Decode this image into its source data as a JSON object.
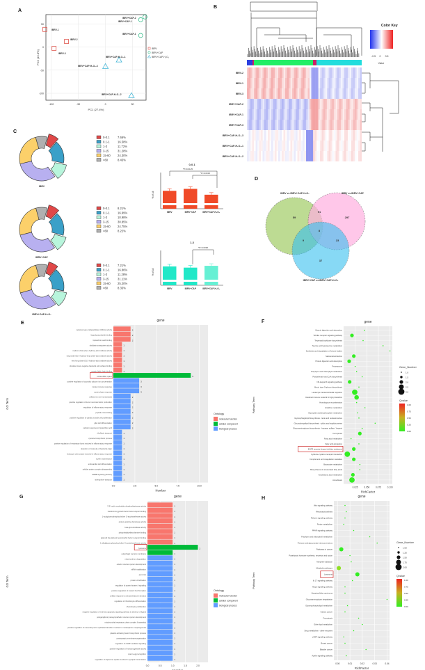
{
  "panels": {
    "A": "A",
    "B": "B",
    "C": "C",
    "D": "D",
    "E": "E",
    "F": "F",
    "G": "G",
    "H": "H"
  },
  "chart_data": [
    {
      "panel": "A",
      "type": "scatter",
      "title": "",
      "xlabel": "PC1 (27.4%)",
      "ylabel": "PC2 (15.8%)",
      "xlim": [
        -110,
        75
      ],
      "ylim": [
        -115,
        70
      ],
      "xticks": [
        -100,
        -50,
        0,
        50
      ],
      "yticks": [
        50,
        0,
        -50,
        -100
      ],
      "legend": [
        "IBRV",
        "IBRV+CAP",
        "IBRV+CAP-H2O2"
      ],
      "series": [
        {
          "name": "IBRV",
          "marker": "square",
          "color": "#e0584f",
          "points": [
            {
              "label": "IBRV-1",
              "x": -112,
              "y": 38
            },
            {
              "label": "IBRV-2",
              "x": -72,
              "y": 12
            },
            {
              "label": "IBRV-3",
              "x": -95,
              "y": -3
            }
          ]
        },
        {
          "name": "IBRV+CAP",
          "marker": "circle",
          "color": "#3fbf8f",
          "points": [
            {
              "label": "IBRV+CAP-2",
              "x": 73,
              "y": 65
            },
            {
              "label": "IBRV+CAP-1",
              "x": 65,
              "y": 59
            },
            {
              "label": "IBRV+CAP-1",
              "x": 65,
              "y": 25
            }
          ]
        },
        {
          "name": "IBRV+CAP-H2O2",
          "marker": "triangle",
          "color": "#48b8d8",
          "points": [
            {
              "label": "IBRV+CAP-H2O2-1",
              "x": 25,
              "y": -28
            },
            {
              "label": "IBRV+CAP-H2O2-3",
              "x": 0,
              "y": -42
            },
            {
              "label": "IBRV+CAP-H2O2-2",
              "x": 48,
              "y": -105
            }
          ]
        }
      ]
    },
    {
      "panel": "B",
      "type": "heatmap",
      "title": "Color Key",
      "legend_label": "Value",
      "legend_ticks": [
        "-0.5",
        "0",
        "0.5"
      ],
      "rows": [
        "IBRV-2",
        "IBRV-1",
        "IBRV-3",
        "IBRV+CAP-2",
        "IBRV+CAP-1",
        "IBRV+CAP-3",
        "IBRV+CAP-H2O2-3",
        "IBRV+CAP-H2O2-1",
        "IBRV+CAP-H2O2-2"
      ],
      "cluster_bar_colors": [
        "#2b3fe0",
        "#cc2266",
        "#22ee66",
        "#cc2266",
        "#22dddd"
      ]
    },
    {
      "panel": "C",
      "type": "pie",
      "charts": [
        {
          "name": "IBRV",
          "categories": [
            "0-0.1",
            "0.1-1",
            "1-3",
            "3-15",
            "15-60",
            ">60"
          ],
          "values": [
            7.66,
            16.58,
            11.72,
            31.28,
            24.3,
            8.45
          ],
          "labels": [
            "7.66%",
            "16.58%",
            "11.72%",
            "31.28%",
            "24.30%",
            "8.45%"
          ]
        },
        {
          "name": "IBRV+CAP",
          "categories": [
            "0-0.1",
            "0.1-1",
            "1-3",
            "3-15",
            "15-60",
            ">60"
          ],
          "values": [
            8.21,
            16.99,
            10.98,
            30.85,
            24.75,
            8.22
          ],
          "labels": [
            "8.21%",
            "16.99%",
            "10.98%",
            "30.85%",
            "24.75%",
            "8.22%"
          ]
        },
        {
          "name": "IBRV+CAP-H2O2",
          "categories": [
            "0-0.1",
            "0.1-1",
            "1-3",
            "3-15",
            "15-60",
            ">60"
          ],
          "values": [
            7.21,
            16.86,
            11.28,
            31.11,
            25.2,
            8.35
          ],
          "labels": [
            "7.21%",
            "16.86%",
            "11.28%",
            "31.11%",
            "25.20%",
            "8.35%"
          ]
        }
      ],
      "colors": [
        "#e04848",
        "#3aa0c8",
        "#b8f5dc",
        "#b8b0f0",
        "#fcd06a",
        "#b0b0b0"
      ]
    },
    {
      "panel": "C-bar-1",
      "type": "bar",
      "title": "0-0.1",
      "ylabel": "% of All",
      "categories": [
        "IBRV",
        "IBRV+CAP",
        "IBRV+CAP-H2O2"
      ],
      "values": [
        7.9,
        8.2,
        7.3
      ],
      "errors": [
        0.15,
        0.1,
        0.1
      ],
      "ylim": [
        0,
        9
      ],
      "yticks": [
        "0",
        "6",
        "7",
        "8",
        "9"
      ],
      "annotations": [
        "*P=0.0125",
        "*P=0.0015"
      ],
      "color": "#f04a28"
    },
    {
      "panel": "C-bar-2",
      "type": "bar",
      "title": "1-3",
      "ylabel": "% of All",
      "categories": [
        "IBRV",
        "IBRV+CAP",
        "IBRV+CAP-H2O2"
      ],
      "values": [
        11.2,
        11.0,
        11.3
      ],
      "errors": [
        0.2,
        0.02,
        0.05
      ],
      "ylim": [
        0,
        12
      ],
      "yticks": [
        "0",
        "5",
        "9",
        "10",
        "11",
        "12"
      ],
      "annotations": [
        "*P=0.0096"
      ],
      "colors": [
        "#22e8c8",
        "#22e8c8",
        "#66f0d4"
      ]
    },
    {
      "panel": "D",
      "type": "venn",
      "sets": [
        "IBRV vs IBRV+CAP-H2O2",
        "IBRV vs IBRV+CAP",
        "IBRV+CAP vs IBRV+CAP-H2O2"
      ],
      "regions": {
        "A_only": 59,
        "B_only": 297,
        "C_only": 37,
        "AB": 91,
        "AC": 9,
        "BC": 23,
        "ABC": 8
      }
    },
    {
      "panel": "E",
      "type": "bar",
      "orientation": "horizontal",
      "title": "gene",
      "xlabel": "Number",
      "ylabel": "GO Term",
      "xticks": [
        "0.0",
        "2.5",
        "5.0",
        "7.5",
        "10.0"
      ],
      "xlim": [
        0,
        11
      ],
      "legend_title": "Ontology",
      "legend": [
        "molecular function",
        "cellular component",
        "biological process"
      ],
      "highlight": "extracellular space",
      "categories": [
        "cysteine-type endopeptidase inhibitor activity",
        "lipopolysaccharide binding",
        "lipoteichoic acid binding",
        "riboflavin transporter activity",
        "medium-chain-(S)-2-hydroxy-acid oxidase activity",
        "long-chain-(S)-2-hydroxy-long-chain-acid oxidase activity",
        "very-long-chain-(S)-2-hydroxy-acid oxidase activity",
        "obsolete Gram-negative bacterial cell surface binding",
        "myosin light chain binding",
        "extracellular space",
        "positive regulation of cytosolic calcium ion concentration",
        "innate immune response",
        "acute-phase response",
        "cellular iron ion homeostasis",
        "positive regulation of tumor necrosis factor production",
        "regulation of inflammatory response",
        "peptide cross-linking",
        "positive regulation of cardiac muscle cell proliferation",
        "glial cell differentiation",
        "cellular response to lipoteichoic acid",
        "riboflavin transport",
        "cysteine biosynthetic process",
        "positive regulation of respiratory burst involved in inflammatory response",
        "detection of molecule of bacterial origin",
        "leukocyte chemotaxis involved in inflammatory response",
        "myelin maintenance",
        "endocardial cell differentiation",
        "cellular protein complex disassembly",
        "ERBB signaling pathway",
        "siderophore transport"
      ],
      "values": [
        2,
        2,
        2,
        1,
        1,
        1,
        1,
        1,
        1,
        9,
        3,
        3,
        3,
        2,
        2,
        2,
        2,
        2,
        2,
        2,
        1,
        1,
        1,
        1,
        1,
        1,
        1,
        1,
        1,
        1
      ],
      "groups": [
        "mf",
        "mf",
        "mf",
        "mf",
        "mf",
        "mf",
        "mf",
        "mf",
        "mf",
        "cc",
        "bp",
        "bp",
        "bp",
        "bp",
        "bp",
        "bp",
        "bp",
        "bp",
        "bp",
        "bp",
        "bp",
        "bp",
        "bp",
        "bp",
        "bp",
        "bp",
        "bp",
        "bp",
        "bp",
        "bp"
      ]
    },
    {
      "panel": "F",
      "type": "scatter",
      "title": "gene",
      "xlabel": "RichFactor",
      "ylabel": "Pathway Term",
      "xticks": [
        "0.025",
        "0.050",
        "0.075",
        "0.100"
      ],
      "size_legend_title": "Gene_Number",
      "size_legend": [
        "1.0",
        "1.5",
        "2.0",
        "2.5",
        "3.0"
      ],
      "color_legend_title": "Qvalue",
      "color_legend": [
        "1.00",
        "0.75",
        "0.50",
        "0.25",
        "0.00"
      ],
      "highlight": "EGFR tyrosine kinase inhibitor resistance",
      "categories": [
        "Vitamin digestion and absorption",
        "Toll-like receptor signaling pathway",
        "Terpenoid backbone biosynthesis",
        "Taurine and hypotaurine metabolism",
        "Synthesis and degradation of ketone bodies",
        "Salmonella infection",
        "Protein digestion and absorption",
        "Proteasome",
        "Porphyrin and chlorophyll metabolism",
        "Pantothenate and CoA biosynthesis",
        "NF-kappa B signaling pathway",
        "Mucin type O-glycan biosynthesis",
        "Leukocyte transendothelial migration",
        "Intestinal immune network for IgA production",
        "Homologous recombination",
        "Histidine metabolism",
        "Glyoxylate and dicarboxylate metabolism",
        "Glycosphingolipid biosynthesis - lacto and neolacto series",
        "Glycosphingolipid biosynthesis - globo and isoglobo series",
        "Glycosaminoglycan biosynthesis - heparan sulfate / heparin",
        "Ferroptosis",
        "Fatty acid metabolism",
        "Fatty acid elongation",
        "EGFR tyrosine kinase inhibitor resistance",
        "Cytokine-cytokine receptor interaction",
        "Complement and coagulation cascades",
        "Butanoate metabolism",
        "Biosynthesis of unsaturated fatty acids",
        "Arachidonic acid metabolism",
        "Amoebiasis"
      ],
      "x": [
        0.045,
        0.018,
        0.042,
        0.085,
        0.1,
        0.022,
        0.012,
        0.025,
        0.028,
        0.04,
        0.013,
        0.033,
        0.024,
        0.028,
        0.028,
        0.046,
        0.03,
        0.033,
        0.068,
        0.04,
        0.035,
        0.016,
        0.033,
        0.022,
        0.008,
        0.022,
        0.035,
        0.035,
        0.02,
        0.018
      ],
      "sizes": [
        1,
        2,
        1,
        1,
        1,
        2,
        2,
        1,
        1,
        1,
        2,
        1,
        3,
        2.5,
        1,
        1,
        1,
        1,
        1,
        1,
        2,
        1,
        1,
        2,
        3,
        2,
        1,
        1,
        2,
        3
      ]
    },
    {
      "panel": "G",
      "type": "bar",
      "orientation": "horizontal",
      "title": "gene",
      "xlabel": "Number",
      "ylabel": "GO Term",
      "xticks": [
        "0.0",
        "0.5",
        "1.0",
        "1.5",
        "2.0"
      ],
      "xlim": [
        0,
        2.4
      ],
      "legend_title": "Ontology",
      "legend": [
        "molecular function",
        "cellular component",
        "biological process"
      ],
      "highlight": "lysosome",
      "categories": [
        "3',5'-cyclic-nucleotide phosphodiesterase activity",
        "transforming growth factor beta receptor binding",
        "1-acylglycerophosphocholine O-acyltransferase activity",
        "protein-arginine deiminase activity",
        "beta-glucuronidase activity",
        "phosphatidylethanolamine binding",
        "glial cell line-derived neurotrophic factor receptor binding",
        "1-alkylglycerophosphocholine O-acetyltransferase activity",
        "lysosome",
        "autophagic vacuole membrane",
        "mitochondrion degradation",
        "enteric nervous system development",
        "mRNA stabilization",
        "peroxisis",
        "protein citrullination",
        "regulation of protein kinase A signaling",
        "positive regulation of ureteric bud formation",
        "cellular response to dexamethasone stimulus",
        "regulation of chondrocyte differentiation",
        "chondrocyte proliferation",
        "negative regulation of extrinsic apoptotic signaling pathway in absence of ligand",
        "postganglionic parasympathetic nervous system development",
        "mitochondrial respiratory chain complex II assembly",
        "positive regulation of mesenchymal to epithelial transition involved in metanephros morphogenesis",
        "platelet activating factor biosynthetic process",
        "postsynaptic membrane organization",
        "regulation of cAMP-mediated signaling",
        "positive regulation of monooxygenase activity",
        "sperm-egg recognition",
        "regulation of dopamine uptake involved in synaptic transmission"
      ],
      "values": [
        1,
        1,
        1,
        1,
        1,
        1,
        1,
        1,
        2,
        1,
        1,
        1,
        1,
        1,
        1,
        1,
        1,
        1,
        1,
        1,
        1,
        1,
        1,
        1,
        1,
        1,
        1,
        1,
        1,
        1
      ],
      "groups": [
        "mf",
        "mf",
        "mf",
        "mf",
        "mf",
        "mf",
        "mf",
        "mf",
        "cc",
        "cc",
        "bp",
        "bp",
        "bp",
        "bp",
        "bp",
        "bp",
        "bp",
        "bp",
        "bp",
        "bp",
        "bp",
        "bp",
        "bp",
        "bp",
        "bp",
        "bp",
        "bp",
        "bp",
        "bp",
        "bp"
      ]
    },
    {
      "panel": "H",
      "type": "scatter",
      "title": "gene",
      "xlabel": "RichFactor",
      "ylabel": "Pathway Term",
      "xticks": [
        "0.00",
        "0.01",
        "0.02",
        "0.03",
        "0.04"
      ],
      "size_legend_title": "Gene_Number",
      "size_legend": [
        "1.00",
        "1.25",
        "1.50",
        "1.75",
        "2.00"
      ],
      "color_legend_title": "Qvalue",
      "color_legend": [
        "1.00",
        "0.75",
        "0.50",
        "0.25",
        "0.00"
      ],
      "highlight": "Lysosome",
      "categories": [
        "Wnt signaling pathway",
        "Rheumatoid arthritis",
        "Relaxin signaling pathway",
        "Purine metabolism",
        "PPAR signaling pathway",
        "Porphyrin and chlorophyll metabolism",
        "Pentose and glucuronate interconversions",
        "Pathways in cancer",
        "Parathyroid hormone synthesis, secretion and action",
        "Morphine addiction",
        "Metabolic pathways",
        "Lysosome",
        "IL-17 signaling pathway",
        "Hippo signaling pathway",
        "Hepatocellular carcinoma",
        "Glycosaminoglycan degradation",
        "Glycerophospholipid metabolism",
        "Gastric cancer",
        "Ferroptosis",
        "Ether lipid metabolism",
        "Drug metabolism - other enzymes",
        "cAMP signaling pathway",
        "Breast cancer",
        "Bladder cancer",
        "Apelin signaling pathway"
      ],
      "x": [
        0.006,
        0.007,
        0.006,
        0.005,
        0.013,
        0.026,
        0.032,
        0.003,
        0.01,
        0.011,
        0.001,
        0.016,
        0.012,
        0.006,
        0.006,
        0.04,
        0.008,
        0.006,
        0.017,
        0.02,
        0.013,
        0.005,
        0.006,
        0.023,
        0.007
      ],
      "sizes": [
        1,
        1,
        1,
        1,
        1,
        1,
        1,
        2,
        1,
        1,
        2,
        2,
        1,
        1,
        1,
        1,
        1,
        1,
        1,
        1,
        1,
        1,
        1,
        1,
        1
      ]
    }
  ],
  "labels": {
    "pca_legend": [
      "IBRV",
      "IBRV+CAP",
      "IBRV+CAP-H₂O₂"
    ],
    "venn_A": "IBRV vs IBRV+CAP-H₂O₂",
    "venn_B": "IBRV vs IBRV+CAP",
    "venn_C": "IBRV+CAP vs IBRV+CAP-H₂O₂",
    "pie_names": [
      "IBRV",
      "IBRV+CAP",
      "IBRV+CAP-H₂O₂"
    ]
  }
}
